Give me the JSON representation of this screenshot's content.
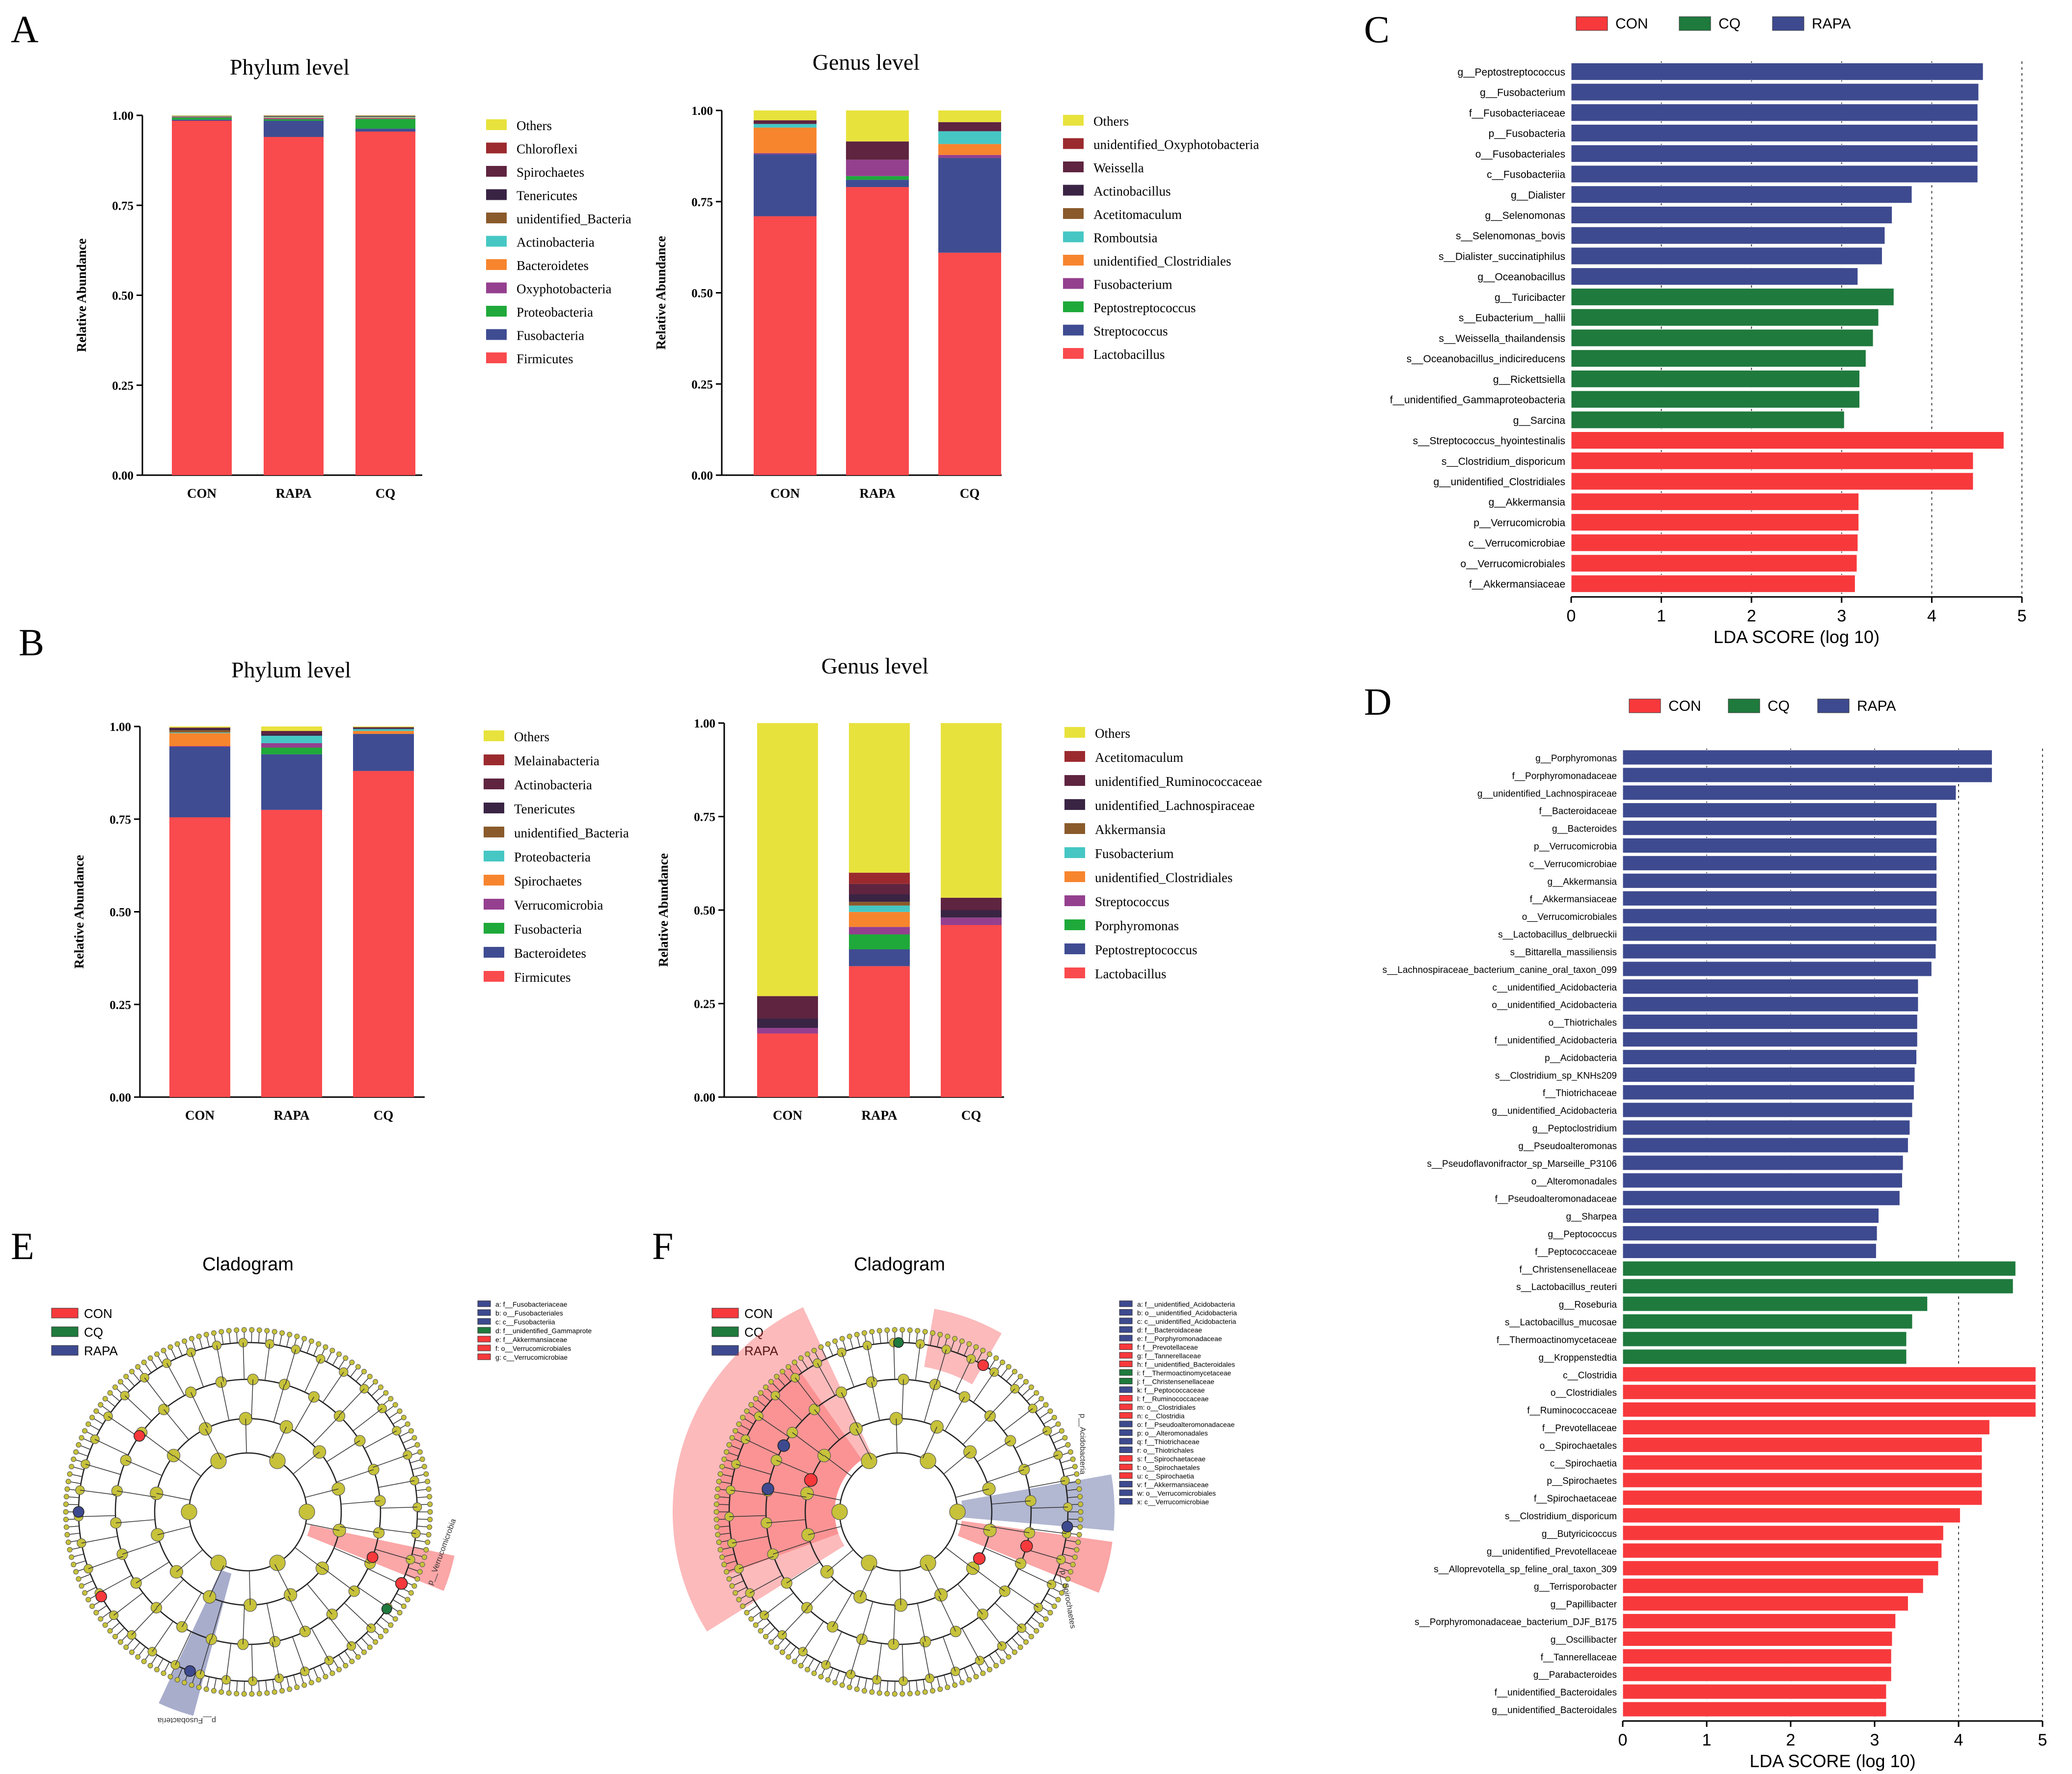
{
  "panel_letters": {
    "A": "A",
    "B": "B",
    "C": "C",
    "D": "D",
    "E": "E",
    "F": "F"
  },
  "colors": {
    "CON": "#f94144",
    "CQ": "#1f7a3d",
    "RAPA": "#3e4a8f",
    "Others": "#e8e23d",
    "Firmicutes": "#f94a4d",
    "Fusobacteria": "#3f4c92",
    "Proteobacteria": "#1fa93a",
    "Oxyphotobacteria": "#94408f",
    "Bacteroidetes": "#f7852e",
    "Actinobacteria": "#46c7c4",
    "unidentified_Bacteria": "#8a5a2b",
    "Tenericutes": "#3a2444",
    "Spirochaetes": "#5e2440",
    "Chloroflexi": "#9b2a2e",
    "Melainabacteria": "#9b2a2e",
    "Verrucomicrobia": "#94408f",
    "clade_node": "#c7c23a",
    "clade_edge": "#222222"
  },
  "chart_data": [
    {
      "id": "A_phylum",
      "type": "bar",
      "stacked": true,
      "title": "Phylum level",
      "ylabel": "Relative Abundance",
      "ylim": [
        0,
        1
      ],
      "yticks": [
        "0.00",
        "0.25",
        "0.50",
        "0.75",
        "1.00"
      ],
      "categories": [
        "CON",
        "RAPA",
        "CQ"
      ],
      "series": [
        {
          "name": "Firmicutes",
          "values": [
            0.985,
            0.94,
            0.955
          ]
        },
        {
          "name": "Fusobacteria",
          "values": [
            0.003,
            0.045,
            0.008
          ]
        },
        {
          "name": "Proteobacteria",
          "values": [
            0.006,
            0.004,
            0.027
          ]
        },
        {
          "name": "Oxyphotobacteria",
          "values": [
            0.002,
            0.003,
            0.002
          ]
        },
        {
          "name": "Bacteroidetes",
          "values": [
            0.001,
            0.002,
            0.002
          ]
        },
        {
          "name": "Actinobacteria",
          "values": [
            0.001,
            0.002,
            0.002
          ]
        },
        {
          "name": "unidentified_Bacteria",
          "values": [
            0.001,
            0.001,
            0.001
          ]
        },
        {
          "name": "Tenericutes",
          "values": [
            0.0,
            0.001,
            0.001
          ]
        },
        {
          "name": "Spirochaetes",
          "values": [
            0.0,
            0.001,
            0.001
          ]
        },
        {
          "name": "Chloroflexi",
          "values": [
            0.0,
            0.0,
            0.0
          ]
        },
        {
          "name": "Others",
          "values": [
            0.001,
            0.001,
            0.001
          ]
        }
      ],
      "legend": [
        "Others",
        "Chloroflexi",
        "Spirochaetes",
        "Tenericutes",
        "unidentified_Bacteria",
        "Actinobacteria",
        "Bacteroidetes",
        "Oxyphotobacteria",
        "Proteobacteria",
        "Fusobacteria",
        "Firmicutes"
      ]
    },
    {
      "id": "A_genus",
      "type": "bar",
      "stacked": true,
      "title": "Genus level",
      "ylabel": "Relative Abundance",
      "ylim": [
        0,
        1
      ],
      "yticks": [
        "0.00",
        "0.25",
        "0.50",
        "0.75",
        "1.00"
      ],
      "categories": [
        "CON",
        "RAPA",
        "CQ"
      ],
      "series": [
        {
          "name": "Lactobacillus",
          "values": [
            0.71,
            0.79,
            0.61
          ]
        },
        {
          "name": "Streptococcus",
          "values": [
            0.17,
            0.02,
            0.26
          ]
        },
        {
          "name": "Peptostreptococcus",
          "values": [
            0.0,
            0.01,
            0.0
          ]
        },
        {
          "name": "Fusobacterium",
          "values": [
            0.003,
            0.045,
            0.008
          ]
        },
        {
          "name": "unidentified_Clostridiales",
          "values": [
            0.07,
            0.0,
            0.03
          ]
        },
        {
          "name": "Romboutsia",
          "values": [
            0.01,
            0.0,
            0.035
          ]
        },
        {
          "name": "Acetitomaculum",
          "values": [
            0.0,
            0.0,
            0.0
          ]
        },
        {
          "name": "Actinobacillus",
          "values": [
            0.0,
            0.0,
            0.0
          ]
        },
        {
          "name": "Weissella",
          "values": [
            0.01,
            0.05,
            0.025
          ]
        },
        {
          "name": "unidentified_Oxyphotobacteria",
          "values": [
            0.0,
            0.0,
            0.0
          ]
        },
        {
          "name": "Others",
          "values": [
            0.027,
            0.085,
            0.032
          ]
        }
      ],
      "legend": [
        "Others",
        "unidentified_Oxyphotobacteria",
        "Weissella",
        "Actinobacillus",
        "Acetitomaculum",
        "Romboutsia",
        "unidentified_Clostridiales",
        "Fusobacterium",
        "Peptostreptococcus",
        "Streptococcus",
        "Lactobacillus"
      ]
    },
    {
      "id": "B_phylum",
      "type": "bar",
      "stacked": true,
      "title": "Phylum level",
      "ylabel": "Relative Abundance",
      "ylim": [
        0,
        1
      ],
      "yticks": [
        "0.00",
        "0.25",
        "0.50",
        "0.75",
        "1.00"
      ],
      "categories": [
        "CON",
        "RAPA",
        "CQ"
      ],
      "series": [
        {
          "name": "Firmicutes",
          "values": [
            0.755,
            0.775,
            0.88
          ]
        },
        {
          "name": "Bacteroidetes",
          "values": [
            0.19,
            0.15,
            0.1
          ]
        },
        {
          "name": "Fusobacteria",
          "values": [
            0.0,
            0.018,
            0.0
          ]
        },
        {
          "name": "Verrucomicrobia",
          "values": [
            0.002,
            0.012,
            0.0
          ]
        },
        {
          "name": "Spirochaetes",
          "values": [
            0.035,
            0.0,
            0.008
          ]
        },
        {
          "name": "Proteobacteria",
          "values": [
            0.002,
            0.02,
            0.005
          ]
        },
        {
          "name": "unidentified_Bacteria",
          "values": [
            0.006,
            0.0,
            0.0
          ]
        },
        {
          "name": "Tenericutes",
          "values": [
            0.004,
            0.005,
            0.002
          ]
        },
        {
          "name": "Actinobacteria",
          "values": [
            0.003,
            0.008,
            0.003
          ]
        },
        {
          "name": "Melainabacteria",
          "values": [
            0.0,
            0.0,
            0.0
          ]
        },
        {
          "name": "Others",
          "values": [
            0.003,
            0.012,
            0.002
          ]
        }
      ],
      "legend": [
        "Others",
        "Melainabacteria",
        "Actinobacteria",
        "Tenericutes",
        "unidentified_Bacteria",
        "Proteobacteria",
        "Spirochaetes",
        "Verrucomicrobia",
        "Fusobacteria",
        "Bacteroidetes",
        "Firmicutes"
      ]
    },
    {
      "id": "B_genus",
      "type": "bar",
      "stacked": true,
      "title": "Genus level",
      "ylabel": "Relative Abundance",
      "ylim": [
        0,
        1
      ],
      "yticks": [
        "0.00",
        "0.25",
        "0.50",
        "0.75",
        "1.00"
      ],
      "categories": [
        "CON",
        "RAPA",
        "CQ"
      ],
      "series": [
        {
          "name": "Lactobacillus",
          "values": [
            0.17,
            0.35,
            0.46
          ]
        },
        {
          "name": "Peptostreptococcus",
          "values": [
            0.0,
            0.045,
            0.0
          ]
        },
        {
          "name": "Porphyromonas",
          "values": [
            0.0,
            0.04,
            0.0
          ]
        },
        {
          "name": "Streptococcus",
          "values": [
            0.015,
            0.02,
            0.02
          ]
        },
        {
          "name": "unidentified_Clostridiales",
          "values": [
            0.0,
            0.04,
            0.0
          ]
        },
        {
          "name": "Fusobacterium",
          "values": [
            0.0,
            0.017,
            0.0
          ]
        },
        {
          "name": "Akkermansia",
          "values": [
            0.0,
            0.01,
            0.0
          ]
        },
        {
          "name": "unidentified_Lachnospiraceae",
          "values": [
            0.025,
            0.02,
            0.02
          ]
        },
        {
          "name": "unidentified_Ruminococcaceae",
          "values": [
            0.06,
            0.028,
            0.033
          ]
        },
        {
          "name": "Acetitomaculum",
          "values": [
            0.0,
            0.03,
            0.0
          ]
        },
        {
          "name": "Others",
          "values": [
            0.73,
            0.4,
            0.467
          ]
        }
      ],
      "legend": [
        "Others",
        "Acetitomaculum",
        "unidentified_Ruminococcaceae",
        "unidentified_Lachnospiraceae",
        "Akkermansia",
        "Fusobacterium",
        "unidentified_Clostridiales",
        "Streptococcus",
        "Porphyromonas",
        "Peptostreptococcus",
        "Lactobacillus"
      ]
    },
    {
      "id": "C_lda",
      "type": "bar",
      "orientation": "horizontal",
      "xlabel": "LDA SCORE (log 10)",
      "xlim": [
        0,
        5
      ],
      "xticks": [
        "0",
        "1",
        "2",
        "3",
        "4",
        "5"
      ],
      "legend": [
        "CON",
        "CQ",
        "RAPA"
      ],
      "categories": [
        "g__Peptostreptococcus",
        "g__Fusobacterium",
        "f__Fusobacteriaceae",
        "p__Fusobacteria",
        "o__Fusobacteriales",
        "c__Fusobacteriia",
        "g__Dialister",
        "g__Selenomonas",
        "s__Selenomonas_bovis",
        "s__Dialister_succinatiphilus",
        "g__Oceanobacillus",
        "g__Turicibacter",
        "s__Eubacterium__hallii",
        "s__Weissella_thailandensis",
        "s__Oceanobacillus_indicireducens",
        "g__Rickettsiella",
        "f__unidentified_Gammaproteobacteria",
        "g__Sarcina",
        "s__Streptococcus_hyointestinalis",
        "s__Clostridium_disporicum",
        "g__unidentified_Clostridiales",
        "g__Akkermansia",
        "p__Verrucomicrobia",
        "c__Verrucomicrobiae",
        "o__Verrucomicrobiales",
        "f__Akkermansiaceae"
      ],
      "values": [
        4.57,
        4.52,
        4.51,
        4.51,
        4.51,
        4.51,
        3.78,
        3.56,
        3.48,
        3.45,
        3.18,
        3.58,
        3.41,
        3.35,
        3.27,
        3.2,
        3.2,
        3.03,
        4.8,
        4.46,
        4.46,
        3.19,
        3.19,
        3.18,
        3.17,
        3.15
      ],
      "groups": [
        "RAPA",
        "RAPA",
        "RAPA",
        "RAPA",
        "RAPA",
        "RAPA",
        "RAPA",
        "RAPA",
        "RAPA",
        "RAPA",
        "RAPA",
        "CQ",
        "CQ",
        "CQ",
        "CQ",
        "CQ",
        "CQ",
        "CQ",
        "CON",
        "CON",
        "CON",
        "CON",
        "CON",
        "CON",
        "CON",
        "CON"
      ]
    },
    {
      "id": "D_lda",
      "type": "bar",
      "orientation": "horizontal",
      "xlabel": "LDA SCORE (log 10)",
      "xlim": [
        0,
        5
      ],
      "xticks": [
        "0",
        "1",
        "2",
        "3",
        "4",
        "5"
      ],
      "legend": [
        "CON",
        "CQ",
        "RAPA"
      ],
      "categories": [
        "g__Porphyromonas",
        "f__Porphyromonadaceae",
        "g__unidentified_Lachnospiraceae",
        "f__Bacteroidaceae",
        "g__Bacteroides",
        "p__Verrucomicrobia",
        "c__Verrucomicrobiae",
        "g__Akkermansia",
        "f__Akkermansiaceae",
        "o__Verrucomicrobiales",
        "s__Lactobacillus_delbrueckii",
        "s__Bittarella_massiliensis",
        "s__Lachnospiraceae_bacterium_canine_oral_taxon_099",
        "c__unidentified_Acidobacteria",
        "o__unidentified_Acidobacteria",
        "o__Thiotrichales",
        "f__unidentified_Acidobacteria",
        "p__Acidobacteria",
        "s__Clostridium_sp_KNHs209",
        "f__Thiotrichaceae",
        "g__unidentified_Acidobacteria",
        "g__Peptoclostridium",
        "g__Pseudoalteromonas",
        "s__Pseudoflavonifractor_sp_Marseille_P3106",
        "o__Alteromonadales",
        "f__Pseudoalteromonadaceae",
        "g__Sharpea",
        "g__Peptococcus",
        "f__Peptococcaceae",
        "f__Christensenellaceae",
        "s__Lactobacillus_reuteri",
        "g__Roseburia",
        "s__Lactobacillus_mucosae",
        "f__Thermoactinomycetaceae",
        "g__Kroppenstedtia",
        "c__Clostridia",
        "o__Clostridiales",
        "f__Ruminococcaceae",
        "f__Prevotellaceae",
        "o__Spirochaetales",
        "c__Spirochaetia",
        "p__Spirochaetes",
        "f__Spirochaetaceae",
        "s__Clostridium_disporicum",
        "g__Butyricicoccus",
        "g__unidentified_Prevotellaceae",
        "s__Alloprevotella_sp_feline_oral_taxon_309",
        "g__Terrisporobacter",
        "g__Papillibacter",
        "s__Porphyromonadaceae_bacterium_DJF_B175",
        "g__Oscillibacter",
        "f__Tannerellaceae",
        "g__Parabacteroides",
        "f__unidentified_Bacteroidales",
        "g__unidentified_Bacteroidales"
      ],
      "values": [
        4.4,
        4.4,
        3.97,
        3.74,
        3.74,
        3.74,
        3.74,
        3.74,
        3.74,
        3.74,
        3.74,
        3.73,
        3.68,
        3.52,
        3.52,
        3.51,
        3.51,
        3.5,
        3.48,
        3.47,
        3.45,
        3.42,
        3.4,
        3.34,
        3.33,
        3.3,
        3.05,
        3.03,
        3.02,
        4.68,
        4.65,
        3.63,
        3.45,
        3.38,
        3.38,
        4.92,
        4.92,
        4.92,
        4.37,
        4.28,
        4.28,
        4.28,
        4.28,
        4.02,
        3.82,
        3.8,
        3.76,
        3.58,
        3.4,
        3.25,
        3.21,
        3.2,
        3.2,
        3.14,
        3.14
      ],
      "groups": [
        "RAPA",
        "RAPA",
        "RAPA",
        "RAPA",
        "RAPA",
        "RAPA",
        "RAPA",
        "RAPA",
        "RAPA",
        "RAPA",
        "RAPA",
        "RAPA",
        "RAPA",
        "RAPA",
        "RAPA",
        "RAPA",
        "RAPA",
        "RAPA",
        "RAPA",
        "RAPA",
        "RAPA",
        "RAPA",
        "RAPA",
        "RAPA",
        "RAPA",
        "RAPA",
        "RAPA",
        "RAPA",
        "RAPA",
        "CQ",
        "CQ",
        "CQ",
        "CQ",
        "CQ",
        "CQ",
        "CON",
        "CON",
        "CON",
        "CON",
        "CON",
        "CON",
        "CON",
        "CON",
        "CON",
        "CON",
        "CON",
        "CON",
        "CON",
        "CON",
        "CON",
        "CON",
        "CON",
        "CON",
        "CON",
        "CON"
      ]
    }
  ],
  "cladogram_E": {
    "title": "Cladogram",
    "legend": [
      "CON",
      "CQ",
      "RAPA"
    ],
    "keys": [
      {
        "text": "a: f__Fusobacteriaceae",
        "group": "RAPA"
      },
      {
        "text": "b: o__Fusobacteriales",
        "group": "RAPA"
      },
      {
        "text": "c: c__Fusobacteriia",
        "group": "RAPA"
      },
      {
        "text": "d: f__unidentified_Gammaprote",
        "group": "CQ"
      },
      {
        "text": "e: f__Akkermansiaceae",
        "group": "CON"
      },
      {
        "text": "f: o__Verrucomicrobiales",
        "group": "CON"
      },
      {
        "text": "g: c__Verrucomicrobiae",
        "group": "CON"
      }
    ],
    "labels": {
      "red": "p__Verrucomicrobia",
      "blue": "p__Fusobacteria"
    }
  },
  "cladogram_F": {
    "title": "Cladogram",
    "legend": [
      "CON",
      "CQ",
      "RAPA"
    ],
    "keys": [
      {
        "text": "a: f__unidentified_Acidobacteria",
        "group": "RAPA"
      },
      {
        "text": "b: o__unidentified_Acidobacteria",
        "group": "RAPA"
      },
      {
        "text": "c: c__unidentified_Acidobacteria",
        "group": "RAPA"
      },
      {
        "text": "d: f__Bacteroidaceae",
        "group": "RAPA"
      },
      {
        "text": "e: f__Porphyromonadaceae",
        "group": "RAPA"
      },
      {
        "text": "f: f__Prevotellaceae",
        "group": "CON"
      },
      {
        "text": "g: f__Tannerellaceae",
        "group": "CON"
      },
      {
        "text": "h: f__unidentified_Bacteroidales",
        "group": "CON"
      },
      {
        "text": "i: f__Thermoactinomycetaceae",
        "group": "CQ"
      },
      {
        "text": "j: f__Christensenellaceae",
        "group": "CQ"
      },
      {
        "text": "k: f__Peptococcaceae",
        "group": "RAPA"
      },
      {
        "text": "l: f__Ruminococcaceae",
        "group": "CON"
      },
      {
        "text": "m: o__Clostridiales",
        "group": "CON"
      },
      {
        "text": "n: c__Clostridia",
        "group": "CON"
      },
      {
        "text": "o: f__Pseudoalteromonadaceae",
        "group": "RAPA"
      },
      {
        "text": "p: o__Alteromonadales",
        "group": "RAPA"
      },
      {
        "text": "q: f__Thiotrichaceae",
        "group": "RAPA"
      },
      {
        "text": "r: o__Thiotrichales",
        "group": "RAPA"
      },
      {
        "text": "s: f__Spirochaetaceae",
        "group": "CON"
      },
      {
        "text": "t: o__Spirochaetales",
        "group": "CON"
      },
      {
        "text": "u: c__Spirochaetia",
        "group": "CON"
      },
      {
        "text": "v: f__Akkermansiaceae",
        "group": "RAPA"
      },
      {
        "text": "w: o__Verrucomicrobiales",
        "group": "RAPA"
      },
      {
        "text": "x: c__Verrucomicrobiae",
        "group": "RAPA"
      }
    ],
    "labels": {
      "red": "p__Spirochaetes",
      "blue": "p__Acidobacteria"
    }
  }
}
